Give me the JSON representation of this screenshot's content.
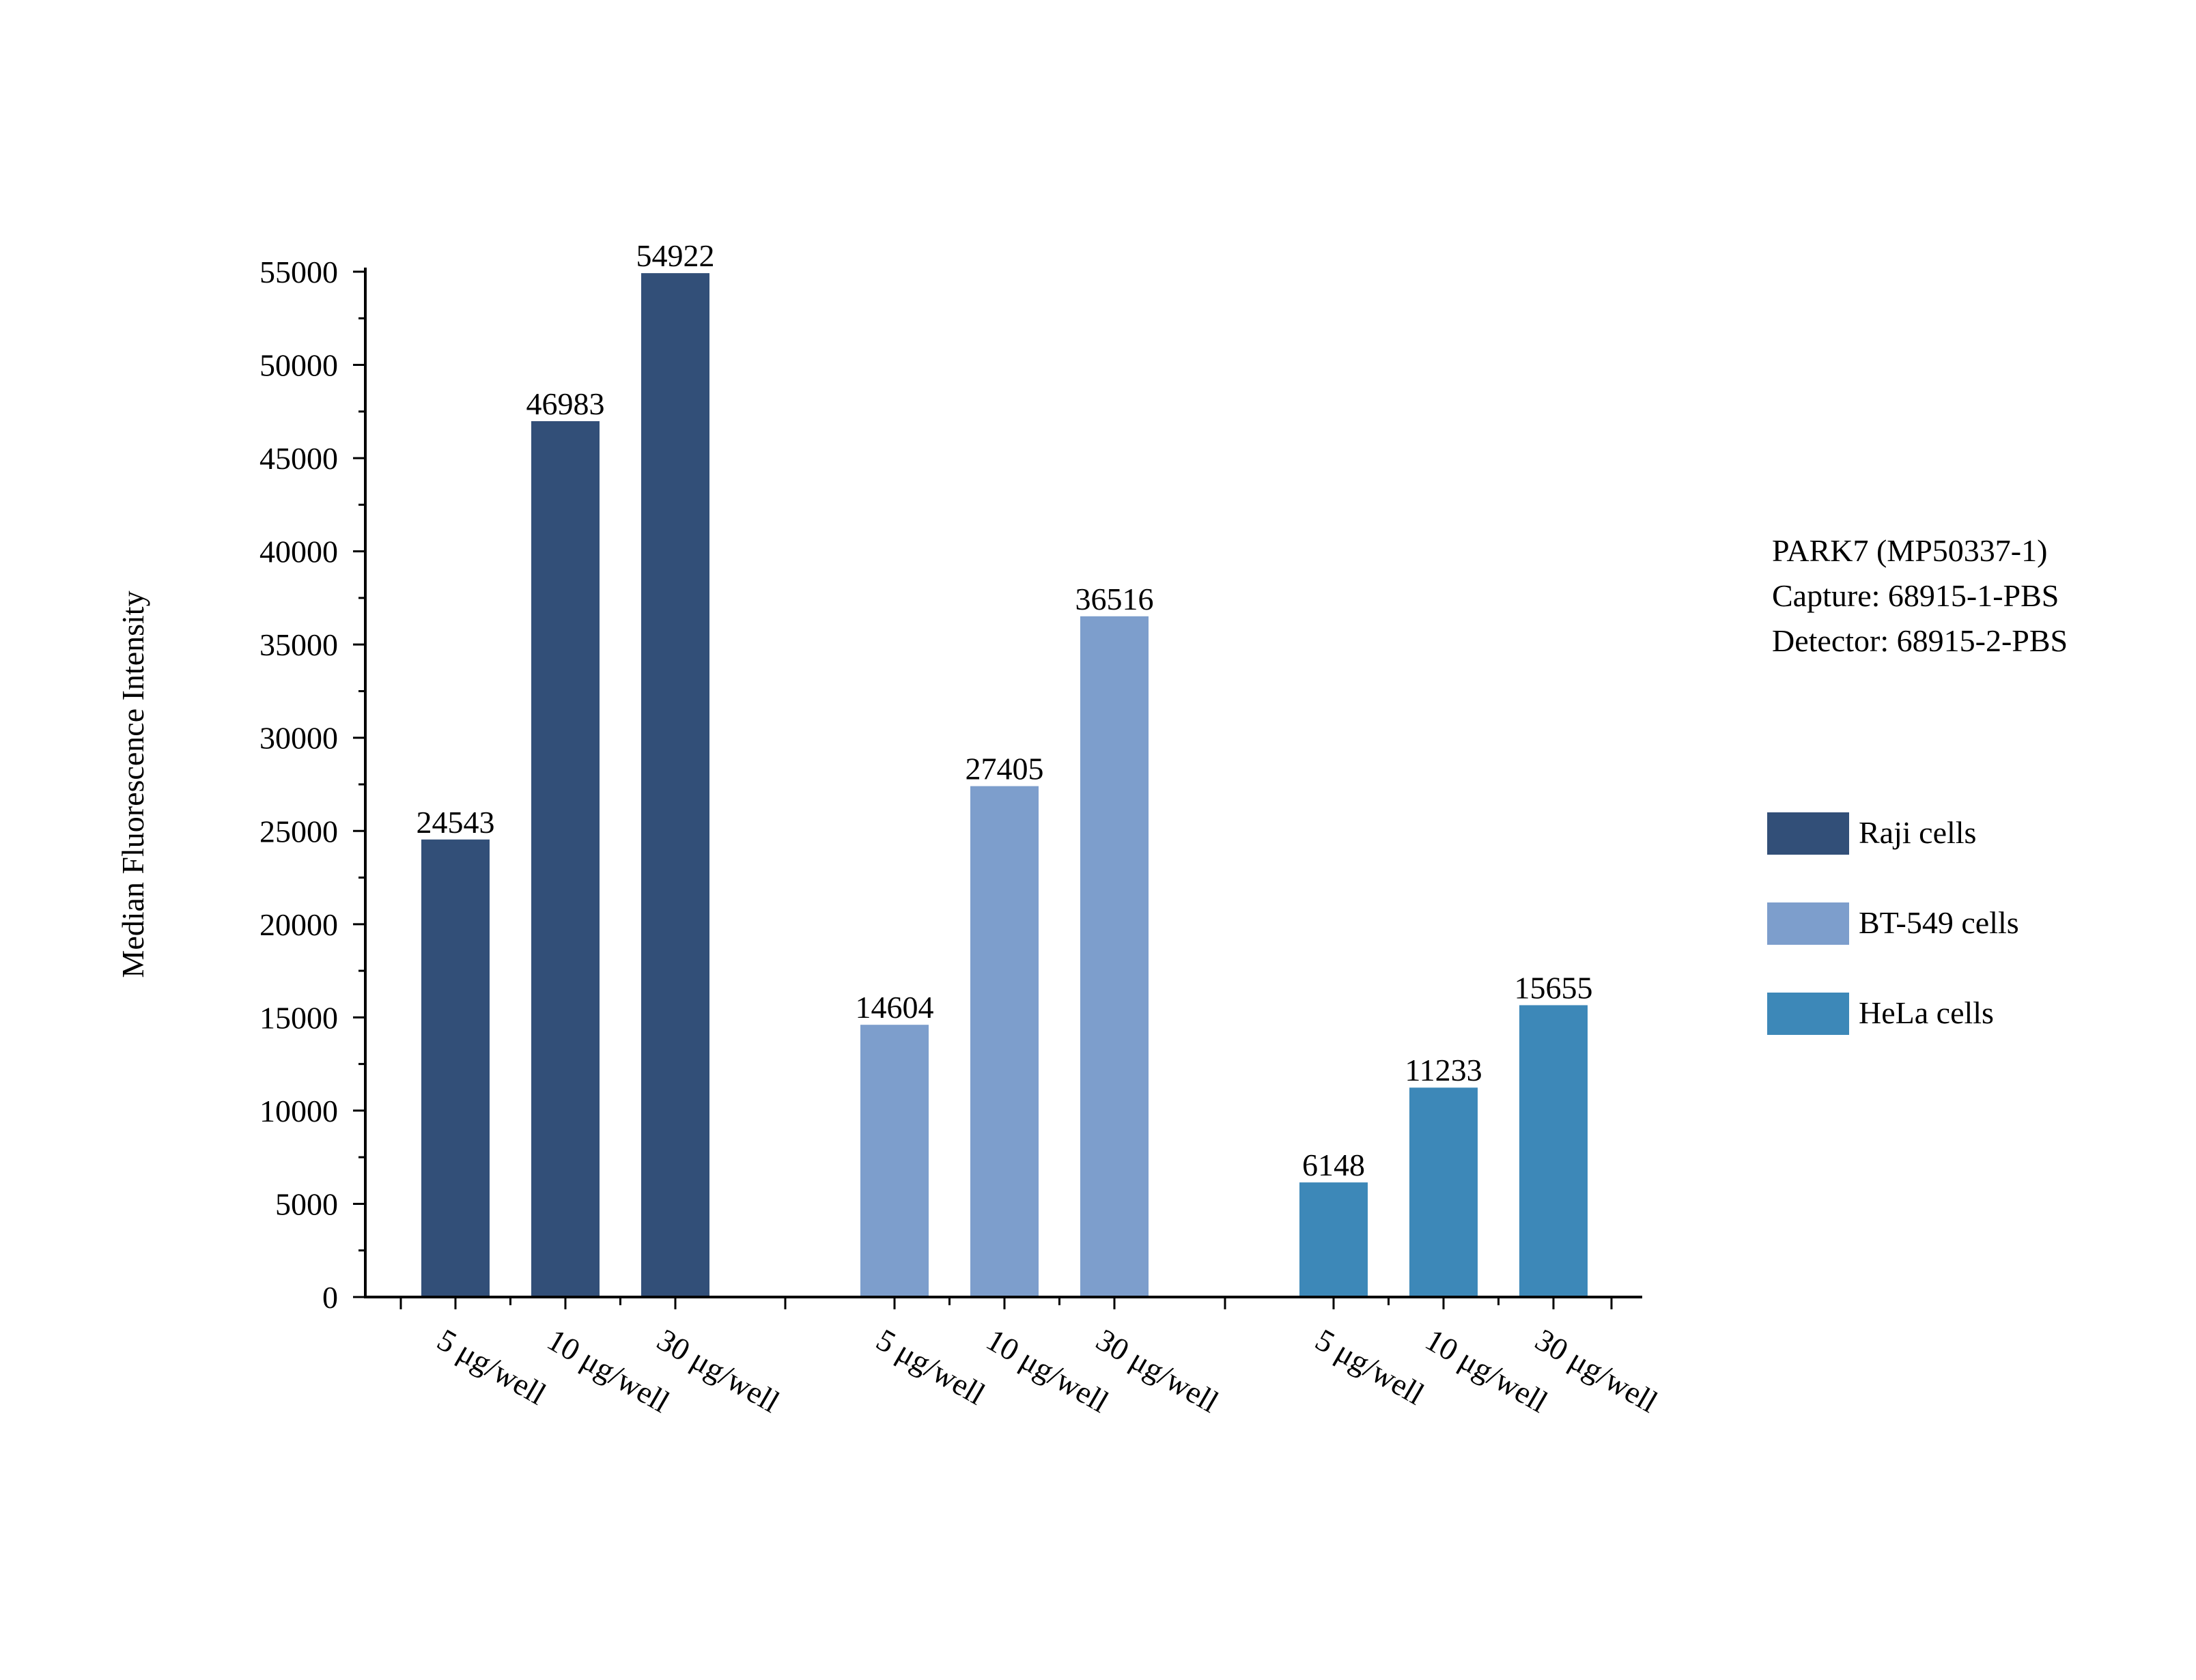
{
  "chart_data": {
    "type": "bar",
    "xlabel": "",
    "ylabel": "Median Fluorescence Intensity",
    "ylim": [
      0,
      55000
    ],
    "yticks": [
      0,
      5000,
      10000,
      15000,
      20000,
      25000,
      30000,
      35000,
      40000,
      45000,
      50000,
      55000
    ],
    "grid": false,
    "legend_position": "right",
    "groups": [
      {
        "name": "Raji cells",
        "color": "#324f78",
        "categories": [
          "5 μg/well",
          "10 μg/well",
          "30 μg/well"
        ],
        "values": [
          24543,
          46983,
          54922
        ]
      },
      {
        "name": "BT-549 cells",
        "color": "#7d9ecc",
        "categories": [
          "5 μg/well",
          "10 μg/well",
          "30 μg/well"
        ],
        "values": [
          14604,
          27405,
          36516
        ]
      },
      {
        "name": "HeLa cells",
        "color": "#3d88b8",
        "categories": [
          "5 μg/well",
          "10 μg/well",
          "30 μg/well"
        ],
        "values": [
          6148,
          11233,
          15655
        ]
      }
    ],
    "annotation": [
      "PARK7 (MP50337-1)",
      "Capture: 68915-1-PBS",
      "Detector: 68915-2-PBS"
    ]
  }
}
